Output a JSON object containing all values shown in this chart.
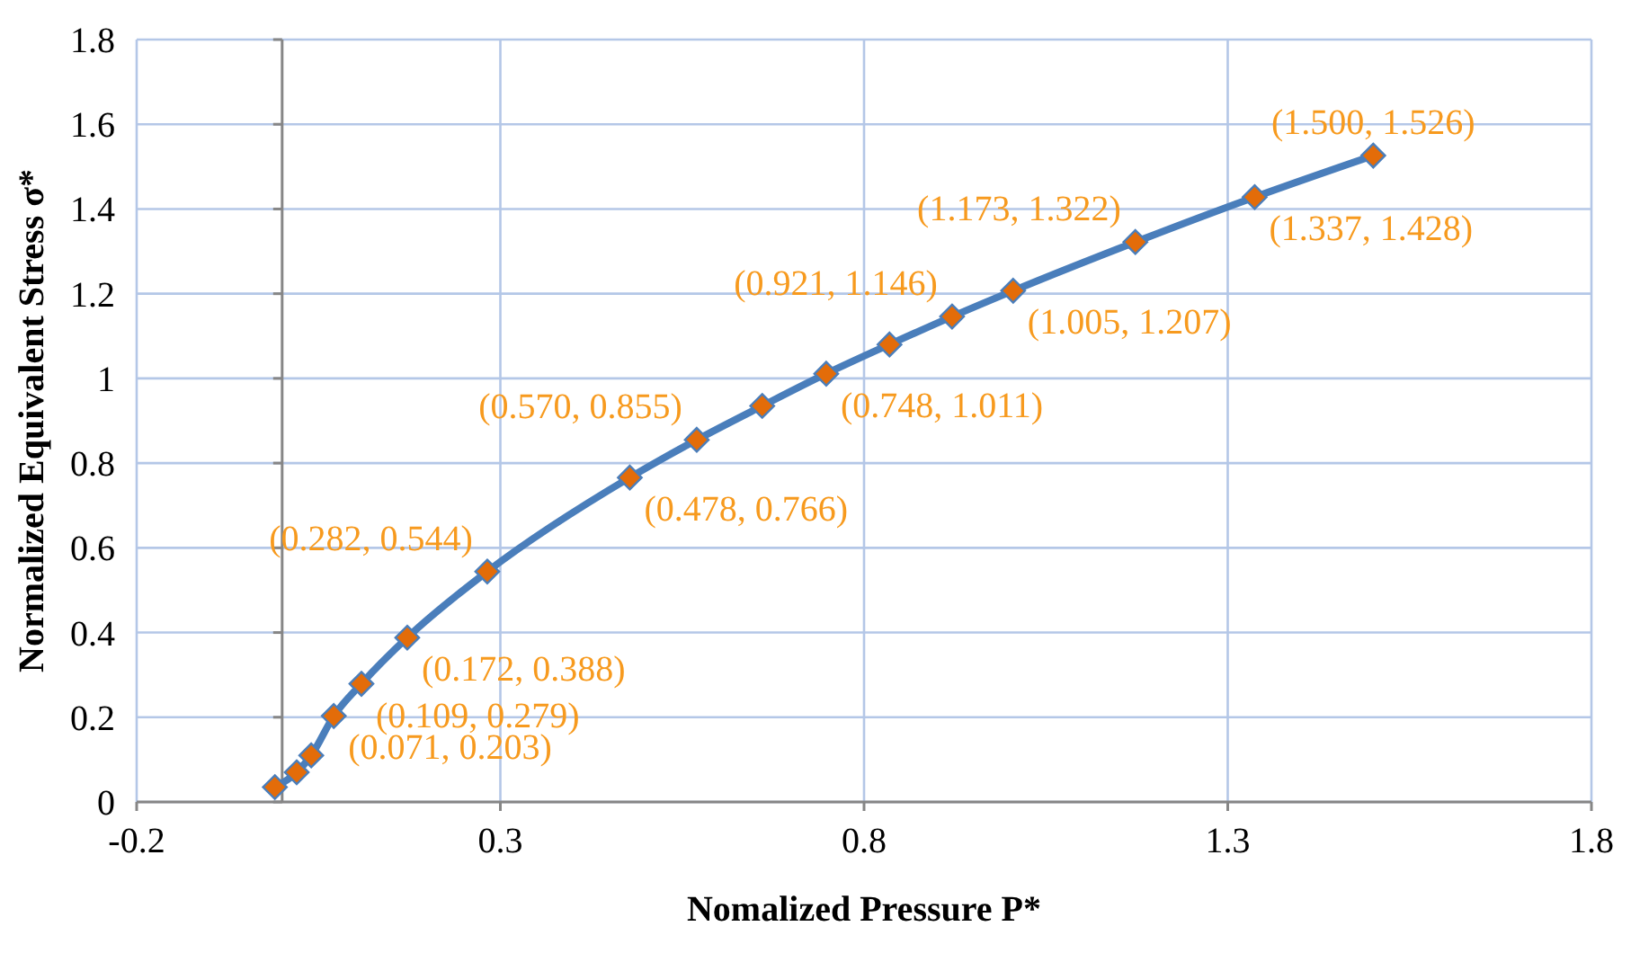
{
  "chart_data": {
    "type": "line",
    "xlabel": "Nomalized Pressure P*",
    "ylabel": "Normalized Equivalent Stress σ*",
    "x": [
      -0.01,
      0.02,
      0.04,
      0.071,
      0.109,
      0.172,
      0.282,
      0.478,
      0.57,
      0.66,
      0.748,
      0.835,
      0.921,
      1.005,
      1.173,
      1.337,
      1.5
    ],
    "series": [
      {
        "color": "#4a7ebb",
        "values": [
          0.035,
          0.07,
          0.11,
          0.203,
          0.279,
          0.388,
          0.544,
          0.766,
          0.855,
          0.935,
          1.011,
          1.08,
          1.146,
          1.207,
          1.322,
          1.428,
          1.526
        ],
        "value_labels": [
          null,
          null,
          null,
          "(0.071, 0.203)",
          "(0.109, 0.279)",
          "(0.172, 0.388)",
          "(0.282, 0.544)",
          "(0.478, 0.766)",
          "(0.570, 0.855)",
          null,
          "(0.748, 1.011)",
          null,
          "(0.921, 1.146)",
          "(1.005, 1.207)",
          "(1.173, 1.322)",
          "(1.337, 1.428)",
          "(1.500, 1.526)"
        ]
      }
    ],
    "marker": "diamond",
    "line_style": "solid",
    "grid": true,
    "xlim": [
      -0.2,
      1.8
    ],
    "xticks": [
      -0.2,
      0.3,
      0.8,
      1.3,
      1.8
    ],
    "ylim": [
      0,
      1.8
    ],
    "yticks": [
      0,
      0.2,
      0.4,
      0.6,
      0.8,
      1,
      1.2,
      1.4,
      1.6,
      1.8
    ]
  }
}
